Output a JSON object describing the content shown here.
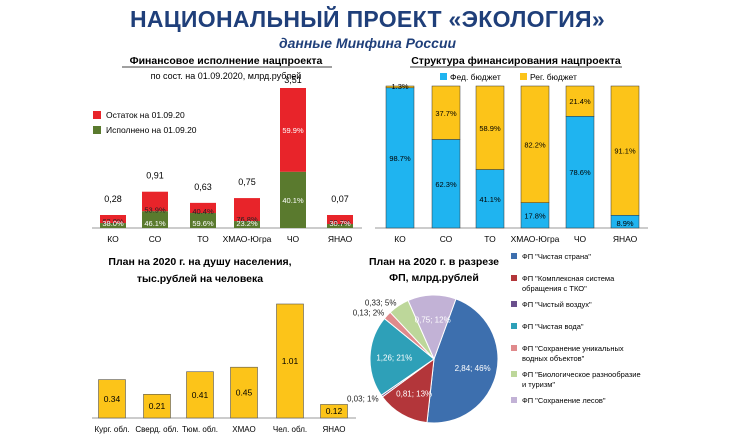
{
  "header": {
    "title": "НАЦИОНАЛЬНЫЙ ПРОЕКТ «ЭКОЛОГИЯ»",
    "subtitle": "данные Минфина России"
  },
  "chart_data": [
    {
      "type": "bar",
      "title": "Финансовое исполнение нацпроекта",
      "subtitle": "по сост. на 01.09.2020, млрд.рублей",
      "categories": [
        "КО",
        "СО",
        "ТО",
        "ХМАО-Югра",
        "ЧО",
        "ЯНАО"
      ],
      "totals": [
        0.28,
        0.91,
        0.63,
        0.75,
        3.51,
        0.07
      ],
      "total_labels": [
        "0,28",
        "0,91",
        "0,63",
        "0,75",
        "3,51",
        "0,07"
      ],
      "series": [
        {
          "name": "Остаток на 01.09.20",
          "color": "#e8242a",
          "percent_labels": [
            "62.0%",
            "53.9%",
            "40.4%",
            "76.8%",
            "59.9%",
            "69.3%"
          ],
          "fractions": [
            0.62,
            0.539,
            0.404,
            0.768,
            0.599,
            0.693
          ]
        },
        {
          "name": "Исполнено на 01.09.20",
          "color": "#5a7a2e",
          "percent_labels": [
            "38.0%",
            "46.1%",
            "59.6%",
            "23.2%",
            "40.1%",
            "30.7%"
          ],
          "fractions": [
            0.38,
            0.461,
            0.596,
            0.232,
            0.401,
            0.307
          ]
        }
      ],
      "legend_position": "left"
    },
    {
      "type": "bar",
      "title": "Структура финансирования нацпроекта",
      "categories": [
        "КО",
        "СО",
        "ТО",
        "ХМАО-Югра",
        "ЧО",
        "ЯНАО"
      ],
      "series": [
        {
          "name": "Фед. бюджет",
          "color": "#1fb4f0",
          "values": [
            98.7,
            62.3,
            41.1,
            17.8,
            78.6,
            8.9
          ],
          "labels": [
            "98.7%",
            "62.3%",
            "41.1%",
            "17.8%",
            "78.6%",
            "8.9%"
          ]
        },
        {
          "name": "Рег. бюджет",
          "color": "#fcc419",
          "values": [
            1.3,
            37.7,
            58.9,
            82.2,
            21.4,
            91.1
          ],
          "labels": [
            "1.3%",
            "37.7%",
            "58.9%",
            "82.2%",
            "21.4%",
            "91.1%"
          ]
        }
      ],
      "legend_position": "top",
      "stacked_percent": true
    },
    {
      "type": "bar",
      "title": "План на 2020 г. на душу населения, тыс.рублей на человека",
      "title_lines": [
        "План на 2020 г. на душу населения,",
        "тыс.рублей на человека"
      ],
      "categories": [
        "Кург. обл.",
        "Сверд. обл.",
        "Тюм. обл.",
        "ХМАО",
        "Чел. обл.",
        "ЯНАО"
      ],
      "values": [
        0.34,
        0.21,
        0.41,
        0.45,
        1.01,
        0.12
      ],
      "value_labels": [
        "0.34",
        "0.21",
        "0.41",
        "0.45",
        "1.01",
        "0.12"
      ],
      "ylim": [
        0,
        1.25
      ],
      "color": "#fcc419"
    },
    {
      "type": "pie",
      "title": "План на 2020 г. в разрезе ФП, млрд.рублей",
      "title_lines": [
        "План на 2020 г. в разрезе",
        "ФП, млрд.рублей"
      ],
      "slices": [
        {
          "name": "ФП \"Чистая страна\"",
          "value": 2.84,
          "label": "2,84; 46%",
          "color": "#3d6fae"
        },
        {
          "name": "ФП \"Комплексная система обращения с ТКО\"",
          "value": 0.81,
          "label": "0,81; 13%",
          "color": "#b3363a"
        },
        {
          "name": "ФП \"Чистый воздух\"",
          "value": 0.03,
          "label": "0,03; 1%",
          "color": "#6a4f8c"
        },
        {
          "name": "ФП \"Чистая вода\"",
          "value": 1.26,
          "label": "1,26; 21%",
          "color": "#2ea0b8"
        },
        {
          "name": "ФП \"Сохранение уникальных водных объектов\"",
          "value": 0.13,
          "label": "0,13; 2%",
          "color": "#e08a8c"
        },
        {
          "name": "ФП \"Биологическое разнообразие и туризм\"",
          "value": 0.33,
          "label": "0,33; 5%",
          "color": "#bdd79a"
        },
        {
          "name": "ФП \"Сохранение лесов\"",
          "value": 0.75,
          "label": "0,75; 12%",
          "color": "#c2b2d6"
        }
      ],
      "legend_lines": [
        [
          "ФП \"Чистая страна\""
        ],
        [
          "ФП \"Комплексная система",
          "обращения с ТКО\""
        ],
        [
          "ФП \"Чистый воздух\""
        ],
        [
          "ФП \"Чистая вода\""
        ],
        [
          "ФП \"Сохранение уникальных",
          "водных объектов\""
        ],
        [
          "ФП \"Биологическое разнообразие",
          "и туризм\""
        ],
        [
          "ФП \"Сохранение лесов\""
        ]
      ],
      "legend_position": "right"
    }
  ]
}
